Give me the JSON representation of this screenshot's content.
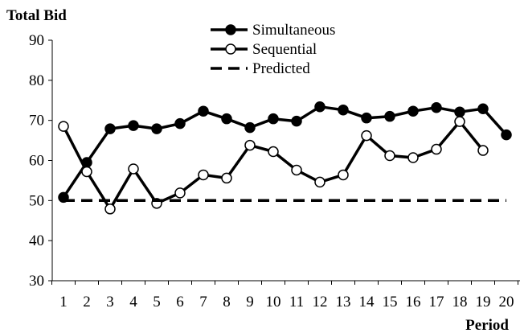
{
  "chart_data": {
    "type": "line",
    "ylabel": "Total Bid",
    "xlabel": "Period",
    "ylim": [
      30,
      90
    ],
    "yticks": [
      30,
      40,
      50,
      60,
      70,
      80,
      90
    ],
    "x": [
      1,
      2,
      3,
      4,
      5,
      6,
      7,
      8,
      9,
      10,
      11,
      12,
      13,
      14,
      15,
      16,
      17,
      18,
      19,
      20
    ],
    "grid": false,
    "legend": "top-center",
    "series": [
      {
        "name": "Simultaneous",
        "marker": "filled-circle",
        "line": "solid",
        "color": "#000000",
        "x": [
          1,
          2,
          3,
          4,
          5,
          6,
          7,
          8,
          9,
          10,
          11,
          12,
          13,
          14,
          15,
          16,
          17,
          18,
          19,
          20
        ],
        "values": [
          50.8,
          59.5,
          67.9,
          68.7,
          67.9,
          69.2,
          72.3,
          70.4,
          68.2,
          70.4,
          69.8,
          73.4,
          72.6,
          70.6,
          71.0,
          72.3,
          73.2,
          72.1,
          72.9,
          66.4
        ]
      },
      {
        "name": "Sequential",
        "marker": "open-circle",
        "line": "solid",
        "color": "#000000",
        "x": [
          1,
          2,
          3,
          4,
          5,
          6,
          7,
          8,
          9,
          10,
          11,
          12,
          13,
          14,
          15,
          16,
          17,
          18,
          19
        ],
        "values": [
          68.5,
          57.2,
          47.9,
          57.9,
          49.3,
          51.9,
          56.4,
          55.6,
          63.8,
          62.2,
          57.6,
          54.6,
          56.4,
          66.2,
          61.2,
          60.7,
          62.8,
          69.7,
          62.5
        ]
      },
      {
        "name": "Predicted",
        "marker": "none",
        "line": "dashed",
        "color": "#000000",
        "x": [
          1,
          20
        ],
        "values": [
          50,
          50
        ]
      }
    ]
  }
}
